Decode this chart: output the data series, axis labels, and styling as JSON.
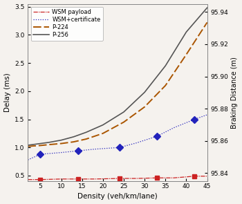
{
  "density_markers": [
    5,
    14,
    24,
    33,
    42
  ],
  "wsm_payload": [
    0.43,
    0.44,
    0.45,
    0.46,
    0.49
  ],
  "wsm_certificate": [
    0.88,
    0.94,
    1.0,
    1.2,
    1.5
  ],
  "p224_x": [
    2,
    3,
    5,
    7,
    10,
    13,
    16,
    20,
    25,
    30,
    35,
    40,
    45
  ],
  "p224_y": [
    1.02,
    1.025,
    1.035,
    1.05,
    1.07,
    1.1,
    1.15,
    1.25,
    1.45,
    1.72,
    2.1,
    2.65,
    3.22
  ],
  "p256_x": [
    2,
    3,
    5,
    7,
    10,
    13,
    16,
    20,
    25,
    30,
    35,
    40,
    45
  ],
  "p256_y": [
    1.04,
    1.05,
    1.07,
    1.09,
    1.13,
    1.19,
    1.27,
    1.4,
    1.63,
    1.98,
    2.45,
    3.05,
    3.48
  ],
  "wsm_payload_x_full": [
    2,
    5,
    10,
    14,
    18,
    24,
    28,
    33,
    37,
    42,
    45
  ],
  "wsm_payload_y_full": [
    0.43,
    0.43,
    0.44,
    0.44,
    0.44,
    0.45,
    0.45,
    0.46,
    0.46,
    0.49,
    0.49
  ],
  "wsm_cert_x_full": [
    2,
    5,
    10,
    14,
    18,
    24,
    28,
    33,
    37,
    42,
    45
  ],
  "wsm_cert_y_full": [
    0.78,
    0.88,
    0.91,
    0.94,
    0.97,
    1.0,
    1.08,
    1.2,
    1.35,
    1.5,
    1.58
  ],
  "xlim": [
    2,
    45
  ],
  "ylim_left": [
    0.4,
    3.55
  ],
  "ylim_right": [
    95.835,
    95.945
  ],
  "yticks_left": [
    0.5,
    1.0,
    1.5,
    2.0,
    2.5,
    3.0,
    3.5
  ],
  "yticks_right": [
    95.84,
    95.86,
    95.88,
    95.9,
    95.92,
    95.94
  ],
  "xticks": [
    5,
    10,
    15,
    20,
    25,
    30,
    35,
    40,
    45
  ],
  "xlabel": "Density (veh/km/lane)",
  "ylabel_left": "Delay (ms)",
  "ylabel_right": "Braking Distance (m)",
  "legend_labels": [
    "WSM payload",
    "WSM+certificate",
    "P-224",
    "P-256"
  ],
  "wsm_payload_color": "#cc2222",
  "wsm_certificate_color": "#2222bb",
  "p224_color": "#aa5500",
  "p256_color": "#555555",
  "background_color": "#f5f2ee"
}
